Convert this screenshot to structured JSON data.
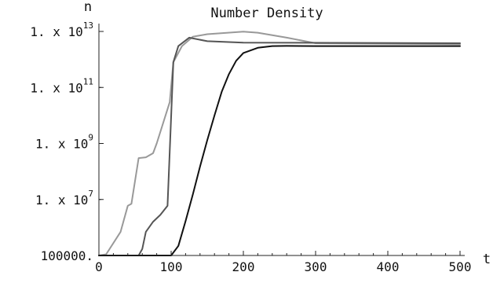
{
  "chart_data": {
    "type": "line",
    "title": "Number Density",
    "xlabel": "t",
    "ylabel": "n",
    "yscale": "log",
    "xlim": [
      0,
      500
    ],
    "ylim": [
      100000,
      10000000000000
    ],
    "grid": false,
    "x_ticks": [
      "0",
      "100",
      "200",
      "300",
      "400",
      "500"
    ],
    "y_ticks": [
      {
        "value": 100000,
        "base": "100000."
      },
      {
        "value": 10000000,
        "base": "1. x 10",
        "exp": "7"
      },
      {
        "value": 1000000000,
        "base": "1. x 10",
        "exp": "9"
      },
      {
        "value": 100000000000,
        "base": "1. x 10",
        "exp": "11"
      },
      {
        "value": 10000000000000,
        "base": "1. x 10",
        "exp": "13"
      }
    ],
    "series": [
      {
        "color": "#999999",
        "points": [
          [
            0,
            100000
          ],
          [
            10,
            110000
          ],
          [
            30,
            700000
          ],
          [
            40,
            6000000
          ],
          [
            45,
            7000000
          ],
          [
            55,
            300000000
          ],
          [
            65,
            320000000
          ],
          [
            75,
            450000000
          ],
          [
            80,
            1000000000
          ],
          [
            98,
            30000000000
          ],
          [
            103,
            800000000000
          ],
          [
            115,
            3000000000000
          ],
          [
            130,
            6500000000000
          ],
          [
            150,
            8000000000000
          ],
          [
            200,
            9800000000000
          ],
          [
            220,
            9000000000000
          ],
          [
            260,
            6000000000000
          ],
          [
            300,
            3800000000000
          ],
          [
            500,
            3500000000000
          ]
        ]
      },
      {
        "color": "#555555",
        "points": [
          [
            0,
            100000
          ],
          [
            55,
            100000
          ],
          [
            60,
            170000
          ],
          [
            65,
            700000
          ],
          [
            75,
            1600000
          ],
          [
            85,
            2800000
          ],
          [
            95,
            6000000
          ],
          [
            103,
            800000000000
          ],
          [
            110,
            3000000000000
          ],
          [
            125,
            6000000000000
          ],
          [
            150,
            4500000000000
          ],
          [
            200,
            4000000000000
          ],
          [
            500,
            3800000000000
          ]
        ]
      },
      {
        "color": "#111111",
        "points": [
          [
            0,
            100000
          ],
          [
            100,
            100000
          ],
          [
            110,
            220000
          ],
          [
            120,
            1700000
          ],
          [
            130,
            15000000
          ],
          [
            140,
            150000000
          ],
          [
            150,
            1300000000
          ],
          [
            160,
            10000000000
          ],
          [
            170,
            70000000000
          ],
          [
            180,
            300000000000
          ],
          [
            190,
            900000000000
          ],
          [
            200,
            1700000000000
          ],
          [
            220,
            2600000000000
          ],
          [
            240,
            3000000000000
          ],
          [
            260,
            3050000000000
          ],
          [
            300,
            3000000000000
          ],
          [
            500,
            3000000000000
          ]
        ]
      }
    ]
  }
}
